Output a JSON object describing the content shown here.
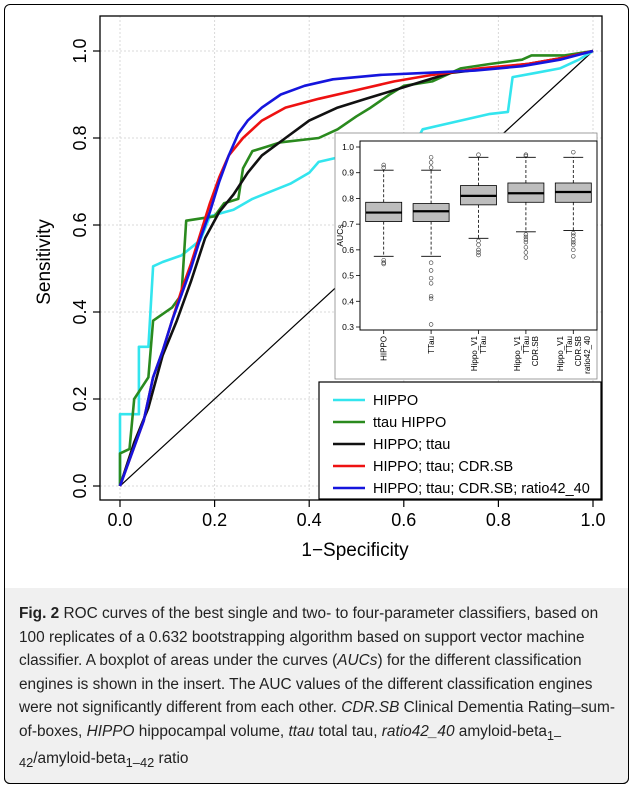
{
  "chart_data": [
    {
      "type": "line",
      "xlabel": "1−Specificity",
      "ylabel": "Sensitivity",
      "xlim": [
        0,
        1
      ],
      "ylim": [
        0,
        1
      ],
      "x_ticks": [
        "0.0",
        "0.2",
        "0.4",
        "0.6",
        "0.8",
        "1.0"
      ],
      "y_ticks": [
        "0.0",
        "0.2",
        "0.4",
        "0.6",
        "0.8",
        "1.0"
      ],
      "grid": true,
      "legend_position": "bottom-right",
      "diagonal": true,
      "series": [
        {
          "name": "HIPPO",
          "color": "#33e5ee",
          "points": [
            [
              0,
              0
            ],
            [
              0,
              0.165
            ],
            [
              0.04,
              0.165
            ],
            [
              0.04,
              0.32
            ],
            [
              0.06,
              0.32
            ],
            [
              0.07,
              0.505
            ],
            [
              0.09,
              0.515
            ],
            [
              0.13,
              0.53
            ],
            [
              0.17,
              0.565
            ],
            [
              0.19,
              0.62
            ],
            [
              0.24,
              0.635
            ],
            [
              0.28,
              0.66
            ],
            [
              0.36,
              0.695
            ],
            [
              0.4,
              0.72
            ],
            [
              0.42,
              0.745
            ],
            [
              0.56,
              0.78
            ],
            [
              0.62,
              0.78
            ],
            [
              0.64,
              0.82
            ],
            [
              0.78,
              0.855
            ],
            [
              0.82,
              0.86
            ],
            [
              0.83,
              0.94
            ],
            [
              0.88,
              0.95
            ],
            [
              0.93,
              0.96
            ],
            [
              0.97,
              0.98
            ],
            [
              1,
              1
            ]
          ]
        },
        {
          "name": "ttau  HIPPO",
          "color": "#2a8a1e",
          "points": [
            [
              0,
              0
            ],
            [
              0,
              0.075
            ],
            [
              0.02,
              0.085
            ],
            [
              0.03,
              0.2
            ],
            [
              0.06,
              0.25
            ],
            [
              0.07,
              0.38
            ],
            [
              0.11,
              0.41
            ],
            [
              0.13,
              0.44
            ],
            [
              0.14,
              0.61
            ],
            [
              0.2,
              0.62
            ],
            [
              0.22,
              0.65
            ],
            [
              0.25,
              0.66
            ],
            [
              0.26,
              0.73
            ],
            [
              0.28,
              0.77
            ],
            [
              0.31,
              0.78
            ],
            [
              0.34,
              0.79
            ],
            [
              0.42,
              0.8
            ],
            [
              0.46,
              0.82
            ],
            [
              0.5,
              0.85
            ],
            [
              0.53,
              0.87
            ],
            [
              0.57,
              0.9
            ],
            [
              0.6,
              0.92
            ],
            [
              0.66,
              0.93
            ],
            [
              0.72,
              0.96
            ],
            [
              0.78,
              0.97
            ],
            [
              0.85,
              0.98
            ],
            [
              0.87,
              0.99
            ],
            [
              0.94,
              0.99
            ],
            [
              1,
              1
            ]
          ]
        },
        {
          "name": "HIPPO; ttau",
          "color": "#111111",
          "points": [
            [
              0,
              0
            ],
            [
              0.03,
              0.1
            ],
            [
              0.06,
              0.18
            ],
            [
              0.09,
              0.3
            ],
            [
              0.12,
              0.38
            ],
            [
              0.15,
              0.47
            ],
            [
              0.18,
              0.57
            ],
            [
              0.21,
              0.63
            ],
            [
              0.24,
              0.67
            ],
            [
              0.27,
              0.72
            ],
            [
              0.3,
              0.76
            ],
            [
              0.35,
              0.8
            ],
            [
              0.4,
              0.84
            ],
            [
              0.46,
              0.87
            ],
            [
              0.52,
              0.89
            ],
            [
              0.58,
              0.91
            ],
            [
              0.64,
              0.93
            ],
            [
              0.7,
              0.95
            ],
            [
              0.78,
              0.96
            ],
            [
              0.86,
              0.97
            ],
            [
              0.94,
              0.985
            ],
            [
              1,
              1
            ]
          ]
        },
        {
          "name": "HIPPO; ttau; CDR.SB",
          "color": "#ee1111",
          "points": [
            [
              0,
              0
            ],
            [
              0.03,
              0.09
            ],
            [
              0.05,
              0.15
            ],
            [
              0.07,
              0.25
            ],
            [
              0.09,
              0.31
            ],
            [
              0.11,
              0.38
            ],
            [
              0.13,
              0.45
            ],
            [
              0.15,
              0.51
            ],
            [
              0.17,
              0.58
            ],
            [
              0.19,
              0.65
            ],
            [
              0.21,
              0.71
            ],
            [
              0.23,
              0.76
            ],
            [
              0.26,
              0.8
            ],
            [
              0.3,
              0.84
            ],
            [
              0.35,
              0.87
            ],
            [
              0.42,
              0.89
            ],
            [
              0.5,
              0.91
            ],
            [
              0.58,
              0.93
            ],
            [
              0.66,
              0.945
            ],
            [
              0.76,
              0.96
            ],
            [
              0.86,
              0.97
            ],
            [
              0.94,
              0.985
            ],
            [
              1,
              1
            ]
          ]
        },
        {
          "name": "HIPPO; ttau; CDR.SB; ratio42_40",
          "color": "#1515dd",
          "points": [
            [
              0,
              0
            ],
            [
              0.03,
              0.09
            ],
            [
              0.05,
              0.15
            ],
            [
              0.07,
              0.25
            ],
            [
              0.09,
              0.31
            ],
            [
              0.11,
              0.38
            ],
            [
              0.13,
              0.44
            ],
            [
              0.15,
              0.5
            ],
            [
              0.17,
              0.57
            ],
            [
              0.19,
              0.63
            ],
            [
              0.21,
              0.7
            ],
            [
              0.23,
              0.76
            ],
            [
              0.25,
              0.81
            ],
            [
              0.27,
              0.84
            ],
            [
              0.3,
              0.87
            ],
            [
              0.34,
              0.9
            ],
            [
              0.39,
              0.92
            ],
            [
              0.45,
              0.935
            ],
            [
              0.55,
              0.945
            ],
            [
              0.65,
              0.95
            ],
            [
              0.75,
              0.955
            ],
            [
              0.85,
              0.965
            ],
            [
              0.93,
              0.98
            ],
            [
              1,
              1
            ]
          ]
        }
      ]
    },
    {
      "type": "box",
      "ylabel": "AUCs",
      "ylim": [
        0.3,
        1.0
      ],
      "y_ticks": [
        "0.3",
        "0.4",
        "0.5",
        "0.6",
        "0.7",
        "0.8",
        "0.9",
        "1.0"
      ],
      "categories": [
        "HIPPO",
        "TTau",
        "Hippo_V1\nTTau",
        "Hippo_V1\nTTau\nCDR.SB",
        "Hippo_V1\nTTau\nCDR.SB\nratio42_40"
      ],
      "boxes": [
        {
          "whisker_low": 0.575,
          "q1": 0.71,
          "median": 0.745,
          "q3": 0.785,
          "whisker_high": 0.91,
          "outliers": [
            0.56,
            0.55,
            0.545,
            0.92,
            0.93
          ]
        },
        {
          "whisker_low": 0.575,
          "q1": 0.71,
          "median": 0.75,
          "q3": 0.78,
          "whisker_high": 0.91,
          "outliers": [
            0.55,
            0.52,
            0.49,
            0.47,
            0.42,
            0.41,
            0.31,
            0.92,
            0.94,
            0.96
          ]
        },
        {
          "whisker_low": 0.645,
          "q1": 0.775,
          "median": 0.81,
          "q3": 0.85,
          "whisker_high": 0.96,
          "outliers": [
            0.635,
            0.62,
            0.6,
            0.59,
            0.58,
            0.97
          ]
        },
        {
          "whisker_low": 0.67,
          "q1": 0.785,
          "median": 0.82,
          "q3": 0.86,
          "whisker_high": 0.96,
          "outliers": [
            0.66,
            0.65,
            0.64,
            0.63,
            0.61,
            0.59,
            0.57,
            0.965,
            0.97
          ]
        },
        {
          "whisker_low": 0.675,
          "q1": 0.785,
          "median": 0.825,
          "q3": 0.86,
          "whisker_high": 0.96,
          "outliers": [
            0.665,
            0.655,
            0.64,
            0.63,
            0.62,
            0.6,
            0.575,
            0.98
          ]
        }
      ]
    }
  ],
  "caption": {
    "fig_label": "Fig. 2",
    "p1": " ROC curves of the best single and two- to four-parameter classifiers, based on 100 replicates of a 0.632 bootstrapping algorithm based on support vector machine classifier. A boxplot of areas under the curves (",
    "auc_abbr": "AUCs",
    "p2": ") for the different classification engines is shown in the insert. The AUC values of the different classification engines were not significantly different from each other. ",
    "cdr_abbr": "CDR.SB",
    "p3": " Clinical Dementia Rating–sum-of-boxes, ",
    "hippo_abbr": "HIPPO",
    "p4": " hippocampal volume, ",
    "ttau_abbr": "ttau",
    "p5": " total tau, ",
    "ratio_abbr": "ratio42_40",
    "p6": " amyloid-beta",
    "sub1": "1–42",
    "p7": "/amyloid-beta",
    "sub2": "1–42",
    "p8": " ratio"
  }
}
